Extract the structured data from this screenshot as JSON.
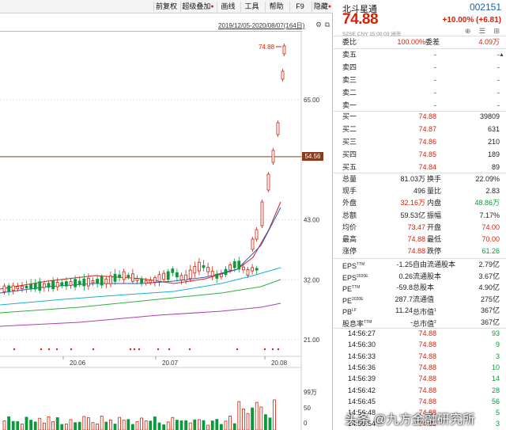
{
  "toolbar": [
    {
      "label": "前复权",
      "dot": false
    },
    {
      "label": "超级叠加",
      "dot": true
    },
    {
      "label": "画线",
      "dot": false
    },
    {
      "label": "工具",
      "dot": false
    },
    {
      "label": "帮助",
      "dot": false
    },
    {
      "label": "F9",
      "dot": false
    },
    {
      "label": "隐藏",
      "dot": true
    }
  ],
  "range_label": "2019/12/05-2020/08/07(164日)",
  "chart_data": {
    "type": "candlestick",
    "y_ticks": [
      "65.00",
      "54.56",
      "43.00",
      "32.00",
      "21.00"
    ],
    "x_ticks": [
      "20.06",
      "20.07",
      "20.08"
    ],
    "high_label": "74.88",
    "current_price_tag": "54.56",
    "volume_ticks": [
      "99万",
      "50",
      "0"
    ]
  },
  "quote": {
    "name": "北斗星通",
    "code": "002151",
    "price": "74.88",
    "change": "+10.00% (+6.81)",
    "status": "SZSE  CNY  15:00:03  闭市",
    "icons": "⊕ ☰ ⊞",
    "ratio": {
      "label": "委比",
      "value": "100.00%",
      "label2": "委差",
      "value2": "4.09万"
    },
    "sells": [
      {
        "label": "卖五",
        "price": "-",
        "vol": "-"
      },
      {
        "label": "卖四",
        "price": "-",
        "vol": "-"
      },
      {
        "label": "卖三",
        "price": "-",
        "vol": "-"
      },
      {
        "label": "卖二",
        "price": "-",
        "vol": "-"
      },
      {
        "label": "卖一",
        "price": "-",
        "vol": "-"
      }
    ],
    "buys": [
      {
        "label": "买一",
        "price": "74.88",
        "vol": "39809"
      },
      {
        "label": "买二",
        "price": "74.87",
        "vol": "631"
      },
      {
        "label": "买三",
        "price": "74.86",
        "vol": "210"
      },
      {
        "label": "买四",
        "price": "74.85",
        "vol": "189"
      },
      {
        "label": "买五",
        "price": "74.84",
        "vol": "89"
      }
    ],
    "stats": [
      {
        "l1": "总量",
        "v1": "81.03万",
        "c1": "",
        "l2": "换手",
        "v2": "22.09%",
        "c2": ""
      },
      {
        "l1": "现手",
        "v1": "496",
        "c1": "",
        "l2": "量比",
        "v2": "2.83",
        "c2": ""
      },
      {
        "l1": "外盘",
        "v1": "32.16万",
        "c1": "red",
        "l2": "内盘",
        "v2": "48.86万",
        "c2": "green"
      },
      {
        "l1": "总额",
        "v1": "59.53亿",
        "c1": "",
        "l2": "振幅",
        "v2": "7.17%",
        "c2": ""
      },
      {
        "l1": "均价",
        "v1": "73.47",
        "c1": "red",
        "l2": "开盘",
        "v2": "74.00",
        "c2": "red"
      },
      {
        "l1": "最高",
        "v1": "74.88",
        "c1": "red",
        "l2": "最低",
        "v2": "70.00",
        "c2": "red"
      },
      {
        "l1": "涨停",
        "v1": "74.88",
        "c1": "red",
        "l2": "跌停",
        "v2": "61.26",
        "c2": "green"
      }
    ],
    "fundamentals": [
      {
        "l1": "EPS",
        "s1": "TTM",
        "v1": "-1.25",
        "l2": "自由流通股本",
        "s2": "",
        "v2": "2.79亿"
      },
      {
        "l1": "EPS",
        "s1": "2020E",
        "v1": "0.26",
        "l2": "流通股本",
        "s2": "",
        "v2": "3.67亿"
      },
      {
        "l1": "PE",
        "s1": "TTM",
        "v1": "-59.8",
        "l2": "总股本",
        "s2": "",
        "v2": "4.90亿"
      },
      {
        "l1": "PE",
        "s1": "2020E",
        "v1": "287.7",
        "l2": "流通值",
        "s2": "",
        "v2": "275亿"
      },
      {
        "l1": "PB",
        "s1": "LF",
        "v1": "11.24",
        "l2": "总市值",
        "s2": "1",
        "v2": "367亿"
      },
      {
        "l1": "股息率",
        "s1": "TTM",
        "v1": "-",
        "l2": "总市值",
        "s2": "2",
        "v2": "367亿"
      }
    ],
    "ticks": [
      {
        "time": "14:56:27",
        "price": "74.88",
        "vol": "93"
      },
      {
        "time": "14:56:30",
        "price": "74.88",
        "vol": "9"
      },
      {
        "time": "14:56:33",
        "price": "74.88",
        "vol": "3"
      },
      {
        "time": "14:56:36",
        "price": "74.88",
        "vol": "10"
      },
      {
        "time": "14:56:39",
        "price": "74.88",
        "vol": "14"
      },
      {
        "time": "14:56:42",
        "price": "74.88",
        "vol": "28"
      },
      {
        "time": "14:56:45",
        "price": "74.88",
        "vol": "56"
      },
      {
        "time": "14:56:48",
        "price": "74.88",
        "vol": "5"
      },
      {
        "time": "14:56:54",
        "price": "74.88",
        "vol": "3"
      }
    ]
  },
  "watermark": "头条 @九方金融研究所",
  "colors": {
    "up": "#d81e06",
    "down": "#0a9a3a",
    "code": "#1a5fb4"
  }
}
